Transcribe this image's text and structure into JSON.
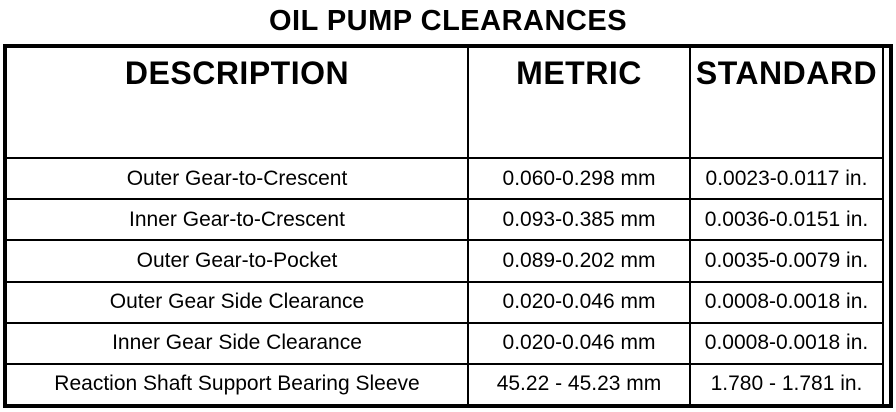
{
  "page": {
    "title": "OIL PUMP CLEARANCES",
    "background_color": "#ffffff",
    "text_color": "#000000",
    "border_color": "#000000"
  },
  "table": {
    "columns": [
      "DESCRIPTION",
      "METRIC",
      "STANDARD"
    ],
    "rows": [
      {
        "description": "Outer Gear-to-Crescent",
        "metric": "0.060-0.298 mm",
        "standard": "0.0023-0.0117 in."
      },
      {
        "description": "Inner Gear-to-Crescent",
        "metric": "0.093-0.385 mm",
        "standard": "0.0036-0.0151 in."
      },
      {
        "description": "Outer Gear-to-Pocket",
        "metric": "0.089-0.202 mm",
        "standard": "0.0035-0.0079 in."
      },
      {
        "description": "Outer Gear Side Clearance",
        "metric": "0.020-0.046 mm",
        "standard": "0.0008-0.0018 in."
      },
      {
        "description": "Inner Gear Side Clearance",
        "metric": "0.020-0.046 mm",
        "standard": "0.0008-0.0018 in."
      },
      {
        "description": "Reaction Shaft Support Bearing Sleeve",
        "metric": "45.22 - 45.23 mm",
        "standard": "1.780 - 1.781 in."
      }
    ]
  }
}
